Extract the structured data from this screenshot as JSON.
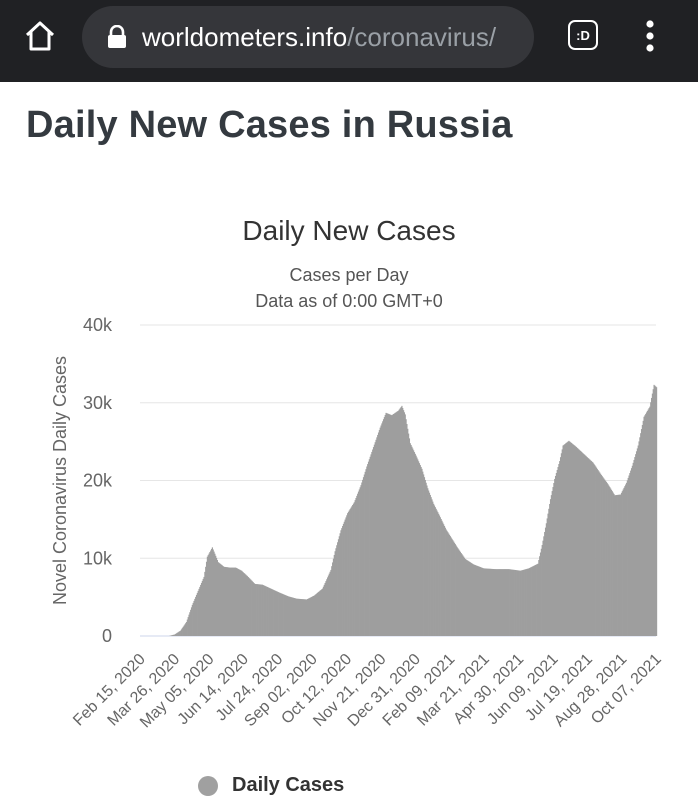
{
  "browser": {
    "url_host": "worldometers.info",
    "url_path": "/coronavirus/",
    "extension_label": ":D"
  },
  "page": {
    "title": "Daily New Cases in Russia"
  },
  "colors": {
    "bar": "#9e9e9e",
    "grid": "#e6e6e6",
    "axis": "#ccd6eb",
    "topbar": "#202124"
  },
  "icons": {
    "home": "home-icon",
    "lock": "lock-icon",
    "extension": "extension-icon",
    "menu": "more-vert-icon"
  },
  "chart_data": {
    "type": "area",
    "title": "Daily New Cases",
    "subtitle_lines": [
      "Cases per Day",
      "Data as of 0:00 GMT+0"
    ],
    "ylabel": "Novel Coronavirus Daily Cases",
    "xlabel": "",
    "ylim": [
      0,
      40000
    ],
    "y_ticks": [
      0,
      10000,
      20000,
      30000,
      40000
    ],
    "y_tick_labels": [
      "0",
      "10k",
      "20k",
      "30k",
      "40k"
    ],
    "x_range": [
      "2020-02-15",
      "2021-10-25"
    ],
    "x_tick_labels": [
      "Feb 15, 2020",
      "Mar 26, 2020",
      "May 05, 2020",
      "Jun 14, 2020",
      "Jul 24, 2020",
      "Sep 02, 2020",
      "Oct 12, 2020",
      "Nov 21, 2020",
      "Dec 31, 2020",
      "Feb 09, 2021",
      "Mar 21, 2021",
      "Apr 30, 2021",
      "Jun 09, 2021",
      "Jul 19, 2021",
      "Aug 28, 2021",
      "Oct 07, 2021"
    ],
    "grid": true,
    "legend": "bottom",
    "series": [
      {
        "name": "Daily Cases",
        "points": [
          [
            "2020-02-15",
            0
          ],
          [
            "2020-03-20",
            0
          ],
          [
            "2020-03-27",
            200
          ],
          [
            "2020-04-03",
            700
          ],
          [
            "2020-04-10",
            1800
          ],
          [
            "2020-04-17",
            4000
          ],
          [
            "2020-04-24",
            5800
          ],
          [
            "2020-05-01",
            7600
          ],
          [
            "2020-05-05",
            10200
          ],
          [
            "2020-05-11",
            11400
          ],
          [
            "2020-05-18",
            9500
          ],
          [
            "2020-05-25",
            8900
          ],
          [
            "2020-06-01",
            8800
          ],
          [
            "2020-06-08",
            8800
          ],
          [
            "2020-06-15",
            8400
          ],
          [
            "2020-06-22",
            7700
          ],
          [
            "2020-07-01",
            6700
          ],
          [
            "2020-07-10",
            6600
          ],
          [
            "2020-07-20",
            6100
          ],
          [
            "2020-07-30",
            5600
          ],
          [
            "2020-08-10",
            5100
          ],
          [
            "2020-08-20",
            4800
          ],
          [
            "2020-09-01",
            4700
          ],
          [
            "2020-09-10",
            5200
          ],
          [
            "2020-09-20",
            6100
          ],
          [
            "2020-09-30",
            8500
          ],
          [
            "2020-10-05",
            10900
          ],
          [
            "2020-10-12",
            13600
          ],
          [
            "2020-10-20",
            15800
          ],
          [
            "2020-10-28",
            17200
          ],
          [
            "2020-11-05",
            19400
          ],
          [
            "2020-11-12",
            21800
          ],
          [
            "2020-11-20",
            24300
          ],
          [
            "2020-11-28",
            26800
          ],
          [
            "2020-12-05",
            28700
          ],
          [
            "2020-12-12",
            28400
          ],
          [
            "2020-12-20",
            29000
          ],
          [
            "2020-12-24",
            29600
          ],
          [
            "2020-12-28",
            28500
          ],
          [
            "2021-01-03",
            24800
          ],
          [
            "2021-01-10",
            23200
          ],
          [
            "2021-01-17",
            21500
          ],
          [
            "2021-01-24",
            19000
          ],
          [
            "2021-01-31",
            17000
          ],
          [
            "2021-02-07",
            15500
          ],
          [
            "2021-02-15",
            13700
          ],
          [
            "2021-02-22",
            12500
          ],
          [
            "2021-03-01",
            11300
          ],
          [
            "2021-03-10",
            9900
          ],
          [
            "2021-03-20",
            9200
          ],
          [
            "2021-04-01",
            8700
          ],
          [
            "2021-04-15",
            8600
          ],
          [
            "2021-05-01",
            8600
          ],
          [
            "2021-05-15",
            8400
          ],
          [
            "2021-05-25",
            8700
          ],
          [
            "2021-06-05",
            9300
          ],
          [
            "2021-06-10",
            11700
          ],
          [
            "2021-06-15",
            14500
          ],
          [
            "2021-06-20",
            17600
          ],
          [
            "2021-06-25",
            20200
          ],
          [
            "2021-07-01",
            22500
          ],
          [
            "2021-07-05",
            24500
          ],
          [
            "2021-07-12",
            25100
          ],
          [
            "2021-07-20",
            24400
          ],
          [
            "2021-07-30",
            23400
          ],
          [
            "2021-08-10",
            22300
          ],
          [
            "2021-08-20",
            20700
          ],
          [
            "2021-08-28",
            19500
          ],
          [
            "2021-09-05",
            18100
          ],
          [
            "2021-09-12",
            18200
          ],
          [
            "2021-09-19",
            19700
          ],
          [
            "2021-09-26",
            21900
          ],
          [
            "2021-10-03",
            24500
          ],
          [
            "2021-10-10",
            28200
          ],
          [
            "2021-10-17",
            29500
          ],
          [
            "2021-10-22",
            32300
          ],
          [
            "2021-10-25",
            32000
          ]
        ]
      }
    ]
  }
}
